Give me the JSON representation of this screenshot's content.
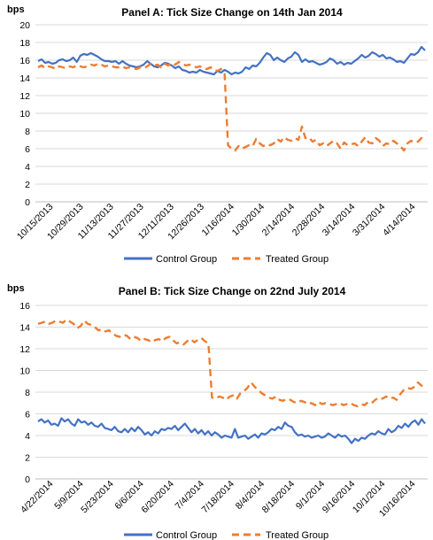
{
  "chart_data": [
    {
      "type": "line",
      "title": "Panel A: Tick Size Change on 14th Jan 2014",
      "ylabel": "bps",
      "ylim": [
        0,
        20
      ],
      "yticks": [
        0,
        2,
        4,
        6,
        8,
        10,
        12,
        14,
        16,
        18,
        20
      ],
      "x_tick_labels": [
        "10/15/2013",
        "10/29/2013",
        "11/13/2013",
        "11/27/2013",
        "12/11/2013",
        "12/26/2013",
        "1/16/2014",
        "1/30/2014",
        "2/14/2014",
        "2/28/2014",
        "3/14/2014",
        "3/31/2014",
        "4/14/2014"
      ],
      "legend_position": "bottom",
      "colors": {
        "control": "#4472c4",
        "treated": "#ed7d31"
      },
      "series": [
        {
          "name": "Control Group",
          "style": "solid",
          "values": [
            15.9,
            16.1,
            15.7,
            15.8,
            15.6,
            15.7,
            16.0,
            16.1,
            15.9,
            16.0,
            16.3,
            15.8,
            16.5,
            16.7,
            16.6,
            16.8,
            16.6,
            16.4,
            16.1,
            15.9,
            15.9,
            15.8,
            15.9,
            15.6,
            15.9,
            15.6,
            15.4,
            15.3,
            15.2,
            15.3,
            15.5,
            15.9,
            15.6,
            15.3,
            15.2,
            15.4,
            15.7,
            15.6,
            15.4,
            15.1,
            15.3,
            14.9,
            14.8,
            14.6,
            14.7,
            14.6,
            14.9,
            14.7,
            14.6,
            14.5,
            14.4,
            14.8,
            14.6,
            14.9,
            14.7,
            14.4,
            14.6,
            14.5,
            14.7,
            15.2,
            15.0,
            15.4,
            15.3,
            15.7,
            16.3,
            16.8,
            16.6,
            16.0,
            16.3,
            16.0,
            15.8,
            16.2,
            16.4,
            16.9,
            16.6,
            15.8,
            16.1,
            15.8,
            15.9,
            15.7,
            15.5,
            15.6,
            15.8,
            16.2,
            16.0,
            15.6,
            15.8,
            15.5,
            15.7,
            15.6,
            15.9,
            16.2,
            16.6,
            16.3,
            16.5,
            16.9,
            16.7,
            16.4,
            16.6,
            16.2,
            16.3,
            16.1,
            15.8,
            15.9,
            15.7,
            16.2,
            16.7,
            16.6,
            16.9,
            17.5,
            17.1
          ]
        },
        {
          "name": "Treated Group",
          "style": "dashed",
          "values": [
            15.2,
            15.4,
            15.1,
            15.3,
            15.2,
            15.0,
            15.3,
            15.2,
            15.1,
            15.3,
            15.2,
            15.4,
            15.3,
            15.2,
            15.3,
            15.5,
            15.4,
            15.6,
            15.5,
            15.3,
            15.4,
            15.3,
            15.2,
            15.2,
            15.3,
            15.1,
            15.2,
            15.1,
            15.0,
            15.2,
            15.1,
            15.3,
            15.6,
            15.4,
            15.5,
            15.2,
            15.6,
            15.4,
            15.7,
            15.5,
            15.8,
            15.6,
            15.4,
            15.5,
            15.3,
            15.2,
            15.3,
            15.1,
            15.0,
            15.2,
            14.9,
            14.8,
            15.0,
            14.6,
            6.4,
            6.0,
            5.8,
            6.3,
            6.0,
            6.2,
            6.4,
            6.3,
            7.1,
            6.6,
            6.3,
            6.5,
            6.4,
            6.6,
            7.1,
            6.8,
            7.3,
            7.0,
            6.9,
            7.2,
            7.0,
            8.5,
            7.2,
            7.3,
            6.8,
            7.0,
            6.4,
            6.6,
            6.3,
            6.6,
            6.9,
            6.6,
            6.0,
            6.7,
            6.4,
            6.5,
            6.6,
            6.3,
            6.8,
            7.3,
            6.7,
            6.6,
            7.2,
            6.9,
            6.3,
            6.6,
            6.5,
            6.9,
            6.6,
            6.3,
            5.8,
            6.6,
            6.9,
            6.7,
            6.8,
            7.2,
            6.8
          ]
        }
      ]
    },
    {
      "type": "line",
      "title": "Panel B: Tick Size Change on 22nd July 2014",
      "ylabel": "bps",
      "ylim": [
        0,
        16
      ],
      "yticks": [
        0,
        2,
        4,
        6,
        8,
        10,
        12,
        14,
        16
      ],
      "x_tick_labels": [
        "4/22/2014",
        "5/9/2014",
        "5/23/2014",
        "6/6/2014",
        "6/20/2014",
        "7/4/2014",
        "7/18/2014",
        "8/4/2014",
        "8/18/2014",
        "9/1/2014",
        "9/16/2014",
        "10/1/2014",
        "10/16/2014"
      ],
      "legend_position": "bottom",
      "colors": {
        "control": "#4472c4",
        "treated": "#ed7d31"
      },
      "series": [
        {
          "name": "Control Group",
          "style": "solid",
          "values": [
            5.3,
            5.5,
            5.2,
            5.4,
            5.0,
            5.1,
            4.9,
            5.6,
            5.3,
            5.5,
            5.1,
            4.9,
            5.5,
            5.2,
            5.3,
            5.0,
            5.2,
            4.9,
            4.8,
            5.1,
            4.7,
            4.6,
            4.5,
            4.8,
            4.4,
            4.3,
            4.6,
            4.3,
            4.7,
            4.4,
            4.8,
            4.5,
            4.1,
            4.3,
            4.0,
            4.4,
            4.2,
            4.6,
            4.5,
            4.7,
            4.6,
            4.9,
            4.5,
            4.8,
            5.1,
            4.7,
            4.3,
            4.6,
            4.2,
            4.5,
            4.1,
            4.4,
            4.0,
            4.3,
            4.1,
            3.8,
            4.0,
            3.9,
            3.8,
            4.6,
            3.8,
            3.9,
            4.0,
            3.7,
            3.9,
            4.1,
            3.8,
            4.2,
            4.1,
            4.3,
            4.6,
            4.5,
            4.8,
            4.6,
            5.2,
            4.9,
            4.8,
            4.3,
            4.0,
            4.1,
            3.9,
            4.0,
            3.8,
            3.9,
            4.0,
            3.8,
            3.9,
            4.2,
            4.0,
            3.8,
            4.1,
            3.9,
            4.0,
            3.7,
            3.3,
            3.7,
            3.5,
            3.8,
            3.7,
            4.0,
            4.2,
            4.1,
            4.4,
            4.2,
            4.1,
            4.6,
            4.3,
            4.5,
            4.9,
            4.7,
            5.1,
            4.8,
            5.2,
            5.4,
            5.0,
            5.5,
            5.1
          ]
        },
        {
          "name": "Treated Group",
          "style": "dashed",
          "values": [
            14.3,
            14.4,
            14.5,
            14.3,
            14.4,
            14.6,
            14.5,
            14.4,
            14.7,
            14.5,
            14.3,
            13.9,
            14.1,
            14.6,
            14.3,
            14.2,
            14.0,
            13.7,
            13.8,
            13.6,
            13.7,
            13.4,
            13.2,
            13.1,
            13.3,
            13.2,
            12.9,
            13.1,
            13.0,
            12.7,
            12.9,
            12.8,
            12.6,
            12.8,
            12.9,
            12.7,
            13.0,
            13.1,
            12.8,
            12.5,
            12.6,
            12.4,
            12.7,
            12.9,
            12.6,
            12.8,
            13.0,
            12.7,
            12.5,
            7.5,
            7.4,
            7.6,
            7.5,
            7.3,
            7.6,
            7.7,
            7.4,
            7.9,
            8.1,
            8.4,
            8.9,
            8.5,
            8.2,
            7.9,
            7.7,
            7.5,
            7.4,
            7.6,
            7.3,
            7.2,
            7.4,
            7.3,
            7.1,
            7.0,
            7.2,
            7.1,
            6.9,
            7.0,
            6.8,
            7.1,
            6.9,
            7.0,
            6.9,
            6.8,
            6.9,
            7.0,
            6.8,
            6.9,
            7.0,
            6.8,
            6.7,
            6.9,
            6.8,
            7.1,
            7.0,
            7.3,
            7.5,
            7.4,
            7.6,
            7.4,
            7.5,
            7.3,
            7.8,
            8.2,
            8.4,
            8.3,
            8.5,
            8.9,
            8.6,
            8.4
          ]
        }
      ]
    }
  ]
}
